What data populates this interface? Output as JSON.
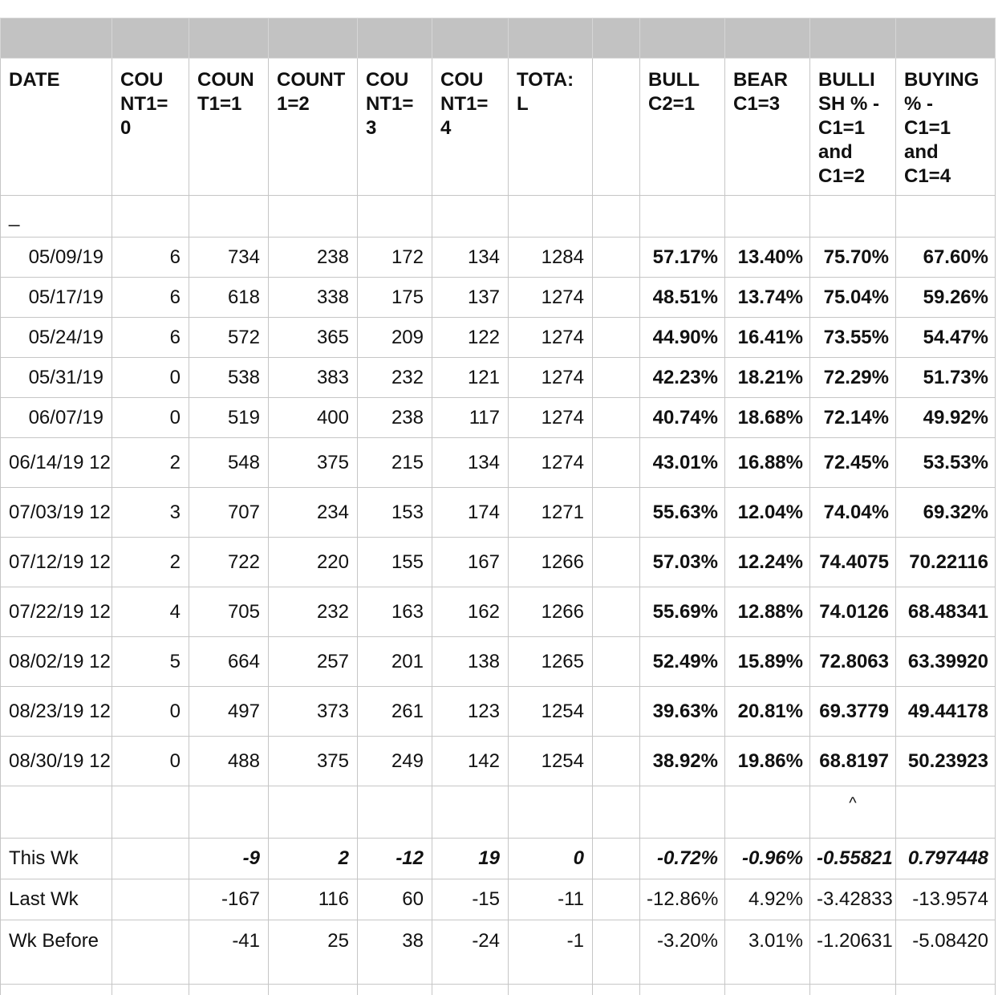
{
  "header": {
    "columns": [
      "DATE",
      "COU\nNT1=\n0",
      "COUN\nT1=1",
      "COUNT\n1=2",
      "COU\nNT1=\n3",
      "COU\nNT1=\n4",
      "TOTA:\nL",
      "BULL\nC2=1",
      "BEAR\nC1=3",
      "BULLI\nSH % -\nC1=1\nand\nC1=2",
      "BUYING\n% -\nC1=1\nand\nC1=4"
    ]
  },
  "marker": "_",
  "rows": [
    {
      "date": "05/09/19",
      "counts": [
        "6",
        "734",
        "238",
        "172",
        "134",
        "1284"
      ],
      "percents": [
        "57.17%",
        "13.40%",
        "75.70%",
        "67.60%"
      ]
    },
    {
      "date": "05/17/19",
      "counts": [
        "6",
        "618",
        "338",
        "175",
        "137",
        "1274"
      ],
      "percents": [
        "48.51%",
        "13.74%",
        "75.04%",
        "59.26%"
      ]
    },
    {
      "date": "05/24/19",
      "counts": [
        "6",
        "572",
        "365",
        "209",
        "122",
        "1274"
      ],
      "percents": [
        "44.90%",
        "16.41%",
        "73.55%",
        "54.47%"
      ]
    },
    {
      "date": "05/31/19",
      "counts": [
        "0",
        "538",
        "383",
        "232",
        "121",
        "1274"
      ],
      "percents": [
        "42.23%",
        "18.21%",
        "72.29%",
        "51.73%"
      ]
    },
    {
      "date": "06/07/19",
      "counts": [
        "0",
        "519",
        "400",
        "238",
        "117",
        "1274"
      ],
      "percents": [
        "40.74%",
        "18.68%",
        "72.14%",
        "49.92%"
      ]
    },
    {
      "date": "06/14/19 12",
      "counts": [
        "2",
        "548",
        "375",
        "215",
        "134",
        "1274"
      ],
      "percents": [
        "43.01%",
        "16.88%",
        "72.45%",
        "53.53%"
      ]
    },
    {
      "date": "07/03/19 12",
      "counts": [
        "3",
        "707",
        "234",
        "153",
        "174",
        "1271"
      ],
      "percents": [
        "55.63%",
        "12.04%",
        "74.04%",
        "69.32%"
      ]
    },
    {
      "date": "07/12/19 12",
      "counts": [
        "2",
        "722",
        "220",
        "155",
        "167",
        "1266"
      ],
      "percents": [
        "57.03%",
        "12.24%",
        "74.4075",
        "70.22116"
      ]
    },
    {
      "date": "07/22/19 12",
      "counts": [
        "4",
        "705",
        "232",
        "163",
        "162",
        "1266"
      ],
      "percents": [
        "55.69%",
        "12.88%",
        "74.0126",
        "68.48341"
      ]
    },
    {
      "date": "08/02/19 12",
      "counts": [
        "5",
        "664",
        "257",
        "201",
        "138",
        "1265"
      ],
      "percents": [
        "52.49%",
        "15.89%",
        "72.8063",
        "63.39920"
      ]
    },
    {
      "date": "08/23/19 12",
      "counts": [
        "0",
        "497",
        "373",
        "261",
        "123",
        "1254"
      ],
      "percents": [
        "39.63%",
        "20.81%",
        "69.3779",
        "49.44178"
      ]
    },
    {
      "date": "08/30/19 12",
      "counts": [
        "0",
        "488",
        "375",
        "249",
        "142",
        "1254"
      ],
      "percents": [
        "38.92%",
        "19.86%",
        "68.8197",
        "50.23923"
      ]
    }
  ],
  "caret": "^",
  "summary": [
    {
      "label": "This Wk",
      "counts": [
        "-9",
        "2",
        "-12",
        "19",
        "0"
      ],
      "percents": [
        "-0.72%",
        "-0.96%",
        "-0.55821",
        "0.797448"
      ]
    },
    {
      "label": "Last Wk",
      "counts": [
        "-167",
        "116",
        "60",
        "-15",
        "-11"
      ],
      "percents": [
        "-12.86%",
        "4.92%",
        "-3.42833",
        "-13.9574"
      ]
    },
    {
      "label": "Wk Before",
      "counts": [
        "-41",
        "25",
        "38",
        "-24",
        "-1"
      ],
      "percents": [
        "-3.20%",
        "3.01%",
        "-1.20631",
        "-5.08420"
      ]
    }
  ]
}
